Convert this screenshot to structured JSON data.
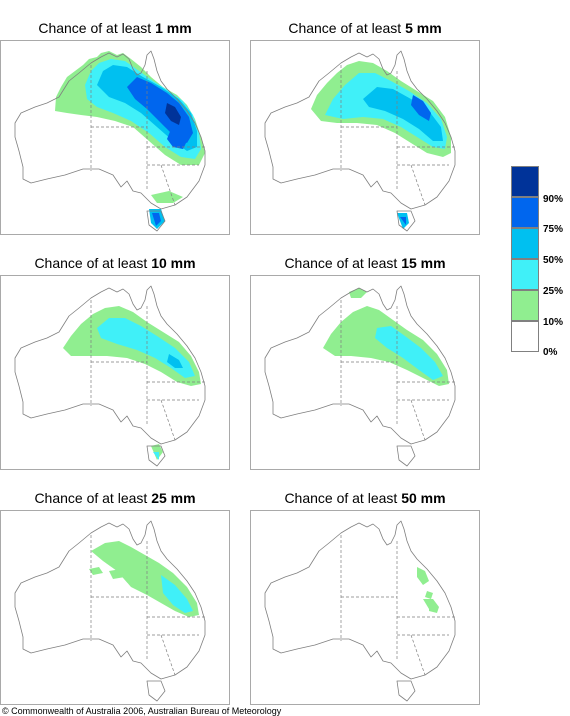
{
  "panels": [
    {
      "prefix": "Chance of at least ",
      "amount": "1 mm"
    },
    {
      "prefix": "Chance of at least ",
      "amount": "5 mm"
    },
    {
      "prefix": "Chance of at least ",
      "amount": "10 mm"
    },
    {
      "prefix": "Chance of at least ",
      "amount": "15 mm"
    },
    {
      "prefix": "Chance of at least ",
      "amount": "25 mm"
    },
    {
      "prefix": "Chance of at least ",
      "amount": "50 mm"
    }
  ],
  "legend": {
    "colors": [
      "#003399",
      "#0066ee",
      "#00c0f0",
      "#40f0f8",
      "#90ee90",
      "#ffffff"
    ],
    "labels": [
      "90%",
      "75%",
      "50%",
      "25%",
      "10%",
      "0%"
    ]
  },
  "colors": {
    "green": "#90ee90",
    "cyan": "#40f0f8",
    "sky": "#00c0f0",
    "blue": "#0066ee",
    "navy": "#003399",
    "outline": "#7f7f7f",
    "border": "#a9a9a9"
  },
  "copyright": "© Commonwealth of Australia 2006, Australian Bureau of Meteorology"
}
